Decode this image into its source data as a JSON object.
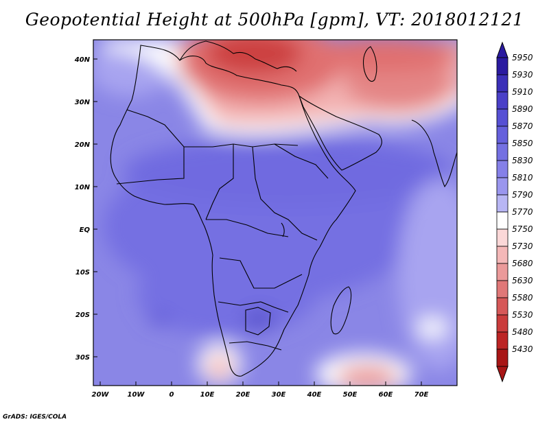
{
  "title": "Geopotential Height at 500hPa [gpm], VT: 2018012121",
  "footer": "GrADS: IGES/COLA",
  "map": {
    "lat_labels": [
      "40N",
      "30N",
      "20N",
      "10N",
      "EQ",
      "10S",
      "20S",
      "30S"
    ],
    "lon_labels": [
      "20W",
      "10W",
      "0",
      "10E",
      "20E",
      "30E",
      "40E",
      "50E",
      "60E",
      "70E"
    ]
  },
  "colorbar": {
    "levels": [
      "5950",
      "5930",
      "5910",
      "5890",
      "5870",
      "5850",
      "5830",
      "5810",
      "5790",
      "5770",
      "5750",
      "5730",
      "5680",
      "5630",
      "5580",
      "5530",
      "5480",
      "5430"
    ],
    "colors": [
      "#2a1aa0",
      "#3b2fb8",
      "#4a40c8",
      "#5650d4",
      "#6560dc",
      "#7470e2",
      "#8580e8",
      "#9a96ee",
      "#b8b6f4",
      "#ffffff",
      "#fbd8d8",
      "#f4b8b8",
      "#eb9a9a",
      "#e07878",
      "#d65858",
      "#ca3c3c",
      "#bc2424",
      "#a81616"
    ]
  }
}
